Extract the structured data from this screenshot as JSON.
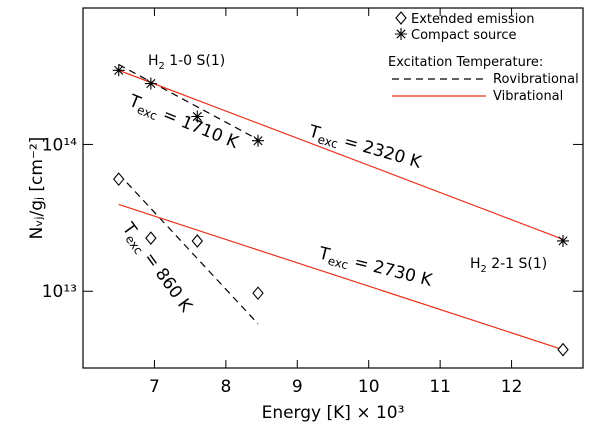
{
  "chart_data": {
    "type": "scatter",
    "xlabel": "Energy [K] × 10³",
    "ylabel": "Nᵥⱼ/gⱼ [cm⁻²]",
    "xlim": [
      6,
      13
    ],
    "xticks": [
      7,
      8,
      9,
      10,
      11,
      12
    ],
    "ylim": [
      3000000000000.0,
      850000000000000.0
    ],
    "yticks": [
      {
        "value": 10000000000000.0,
        "label": "10¹³"
      },
      {
        "value": 100000000000000.0,
        "label": "10¹⁴"
      }
    ],
    "log_y": true,
    "legend_title": "Excitation Temperature:",
    "series": [
      {
        "name": "Extended emission",
        "marker": "diamond",
        "color": "#000000",
        "x": [
          6.5,
          6.95,
          7.6,
          8.45,
          12.72
        ],
        "values": [
          58000000000000.0,
          23000000000000.0,
          22000000000000.0,
          9700000000000.0,
          4000000000000.0
        ]
      },
      {
        "name": "Compact source",
        "marker": "asterisk",
        "color": "#000000",
        "x": [
          6.5,
          6.95,
          7.6,
          8.45,
          12.72
        ],
        "values": [
          320000000000000.0,
          260000000000000.0,
          155000000000000.0,
          106000000000000.0,
          22000000000000.0
        ]
      },
      {
        "name": "Rovibrational",
        "line": "dashed",
        "color": "#000000",
        "x": [
          6.5,
          8.45,
          null,
          6.5,
          8.45
        ],
        "values": [
          350000000000000.0,
          108000000000000.0,
          null,
          63000000000000.0,
          6000000000000.0
        ]
      },
      {
        "name": "Vibrational",
        "line": "solid",
        "color": "#e8341c",
        "x": [
          6.5,
          12.72,
          null,
          6.5,
          12.72
        ],
        "values": [
          320000000000000.0,
          22600000000000.0,
          null,
          39000000000000.0,
          4000000000000.0
        ]
      }
    ],
    "annotations": [
      {
        "text": "H",
        "sub": "2",
        "rest": " 1-0 S(1)"
      },
      {
        "text": "H",
        "sub": "2",
        "rest": " 2-1 S(1)"
      },
      {
        "text": "T",
        "sub": "exc",
        "rest": " = 1710 K"
      },
      {
        "text": "T",
        "sub": "exc",
        "rest": " = 2320 K"
      },
      {
        "text": "T",
        "sub": "exc",
        "rest": " = 860 K"
      },
      {
        "text": "T",
        "sub": "exc",
        "rest": " = 2730 K"
      }
    ]
  }
}
